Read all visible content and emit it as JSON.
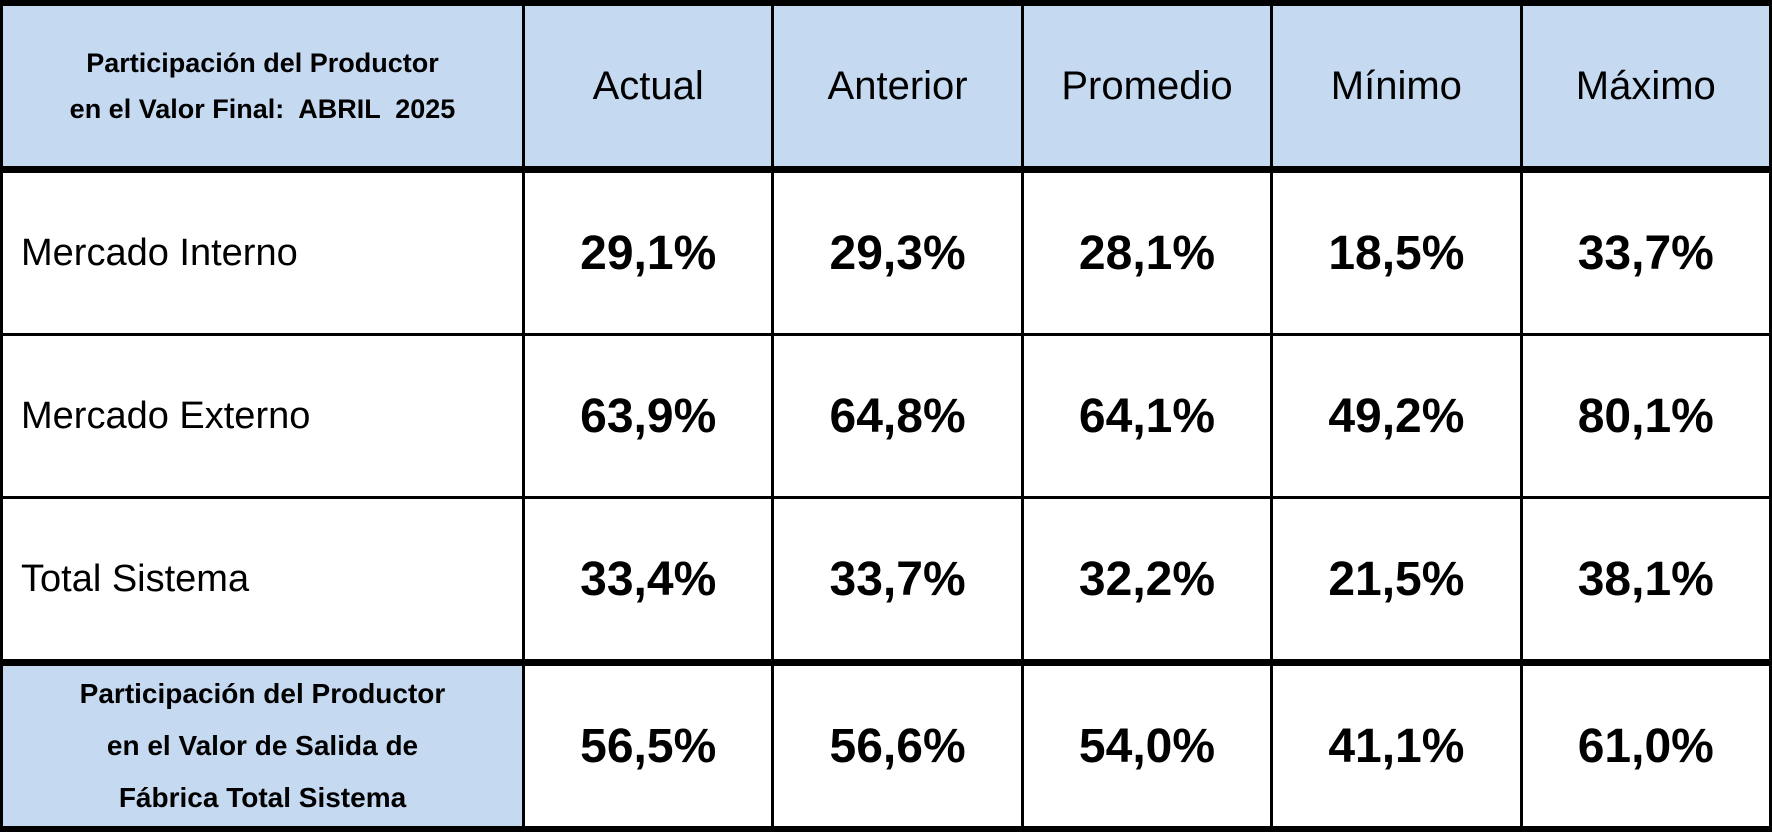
{
  "table": {
    "title_lines": [
      "Participación del Productor",
      "en el Valor Final:  ABRIL  2025"
    ],
    "columns": [
      "Actual",
      "Anterior",
      "Promedio",
      "Mínimo",
      "Máximo"
    ],
    "rows": [
      {
        "label_lines": [
          "Mercado Interno"
        ],
        "values": [
          "29,1%",
          "29,3%",
          "28,1%",
          "18,5%",
          "33,7%"
        ]
      },
      {
        "label_lines": [
          "Mercado Externo"
        ],
        "values": [
          "63,9%",
          "64,8%",
          "64,1%",
          "49,2%",
          "80,1%"
        ]
      },
      {
        "label_lines": [
          "Total Sistema"
        ],
        "values": [
          "33,4%",
          "33,7%",
          "32,2%",
          "21,5%",
          "38,1%"
        ]
      },
      {
        "label_lines": [
          "Participación del Productor",
          "en el Valor de Salida de",
          "Fábrica Total Sistema"
        ],
        "values": [
          "56,5%",
          "56,6%",
          "54,0%",
          "41,1%",
          "61,0%"
        ]
      }
    ]
  }
}
